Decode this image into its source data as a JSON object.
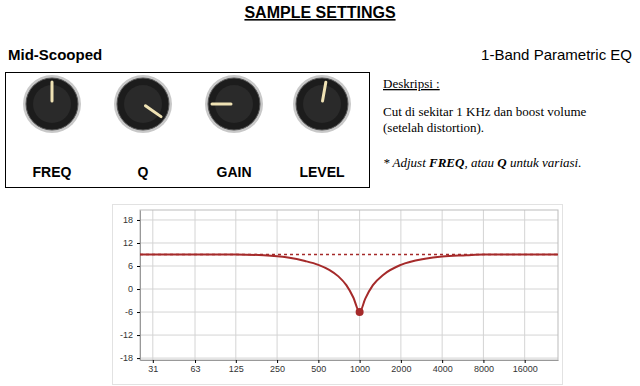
{
  "header": {
    "title": "SAMPLE SETTINGS",
    "preset": "Mid-Scooped",
    "device": "1-Band Parametric EQ"
  },
  "knobs": [
    {
      "label": "FREQ",
      "pointer": 0
    },
    {
      "label": "Q",
      "pointer": 125
    },
    {
      "label": "GAIN",
      "pointer": -90
    },
    {
      "label": "LEVEL",
      "pointer": 10
    }
  ],
  "description": {
    "heading": "Deskripsi :",
    "lines": [
      "Cut di sekitar 1 KHz dan boost volume",
      "(setelah distortion)."
    ],
    "note": [
      "* Adjust ",
      "FREQ",
      ", atau ",
      "Q",
      " untuk variasi."
    ]
  },
  "chart_data": {
    "type": "line",
    "log": "x",
    "grid": true,
    "xlim": [
      25,
      28000
    ],
    "ylim": [
      -18.5,
      20.6
    ],
    "xticks": [
      31,
      63,
      125,
      250,
      500,
      1000,
      2000,
      4000,
      8000,
      16000
    ],
    "yticks": [
      18,
      12,
      6,
      0,
      -6,
      -12,
      -18
    ],
    "series": [
      {
        "type": "line",
        "line_style": "dashed",
        "color": "#a52a2a",
        "x": [
          25,
          28000
        ],
        "values": [
          9,
          9
        ]
      },
      {
        "type": "line",
        "line_style": "solid",
        "color": "#a52a2a",
        "x": [
          25,
          125,
          200,
          300,
          400,
          500,
          600,
          700,
          800,
          900,
          1000,
          1100,
          1250,
          1500,
          2000,
          3000,
          4000,
          6000,
          8000,
          16000,
          28000
        ],
        "values": [
          9,
          9,
          8.8,
          8.2,
          7.3,
          6.3,
          5,
          3.3,
          1,
          -2.2,
          -6,
          -2.5,
          1,
          3.8,
          6.3,
          7.9,
          8.5,
          8.8,
          9,
          9,
          9
        ]
      },
      {
        "type": "scatter",
        "marker": "circle",
        "color": "#a52a2a",
        "x": [
          1000
        ],
        "values": [
          -6
        ]
      }
    ]
  }
}
